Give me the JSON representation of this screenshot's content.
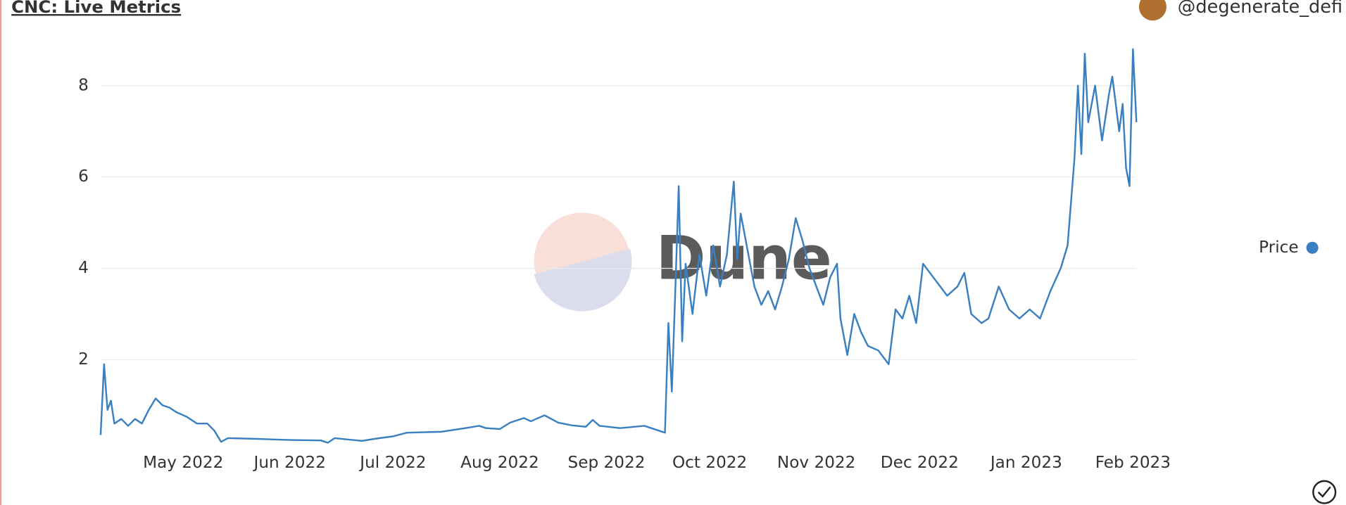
{
  "header": {
    "title": "CNC: Live Metrics",
    "user": "@degenerate_defi"
  },
  "chart_data": {
    "type": "line",
    "watermark": "Dune",
    "x": [
      "2022-04-07",
      "2022-04-08",
      "2022-04-09",
      "2022-04-10",
      "2022-04-11",
      "2022-04-13",
      "2022-04-15",
      "2022-04-17",
      "2022-04-19",
      "2022-04-21",
      "2022-04-23",
      "2022-04-25",
      "2022-04-27",
      "2022-04-29",
      "2022-05-02",
      "2022-05-05",
      "2022-05-08",
      "2022-05-10",
      "2022-05-12",
      "2022-05-14",
      "2022-05-20",
      "2022-06-01",
      "2022-06-10",
      "2022-06-12",
      "2022-06-14",
      "2022-06-18",
      "2022-06-22",
      "2022-06-26",
      "2022-07-01",
      "2022-07-05",
      "2022-07-15",
      "2022-07-22",
      "2022-07-26",
      "2022-07-28",
      "2022-08-01",
      "2022-08-04",
      "2022-08-08",
      "2022-08-10",
      "2022-08-14",
      "2022-08-18",
      "2022-08-22",
      "2022-08-26",
      "2022-08-28",
      "2022-08-30",
      "2022-09-05",
      "2022-09-12",
      "2022-09-18",
      "2022-09-19",
      "2022-09-20",
      "2022-09-21",
      "2022-09-22",
      "2022-09-23",
      "2022-09-24",
      "2022-09-26",
      "2022-09-28",
      "2022-09-30",
      "2022-10-02",
      "2022-10-04",
      "2022-10-06",
      "2022-10-08",
      "2022-10-09",
      "2022-10-10",
      "2022-10-12",
      "2022-10-14",
      "2022-10-16",
      "2022-10-18",
      "2022-10-20",
      "2022-10-22",
      "2022-10-24",
      "2022-10-26",
      "2022-10-28",
      "2022-10-30",
      "2022-11-01",
      "2022-11-03",
      "2022-11-05",
      "2022-11-07",
      "2022-11-08",
      "2022-11-10",
      "2022-11-12",
      "2022-11-14",
      "2022-11-16",
      "2022-11-19",
      "2022-11-22",
      "2022-11-24",
      "2022-11-26",
      "2022-11-28",
      "2022-11-30",
      "2022-12-02",
      "2022-12-04",
      "2022-12-06",
      "2022-12-09",
      "2022-12-12",
      "2022-12-14",
      "2022-12-16",
      "2022-12-19",
      "2022-12-21",
      "2022-12-24",
      "2022-12-27",
      "2022-12-30",
      "2023-01-02",
      "2023-01-05",
      "2023-01-08",
      "2023-01-11",
      "2023-01-13",
      "2023-01-15",
      "2023-01-16",
      "2023-01-17",
      "2023-01-18",
      "2023-01-19",
      "2023-01-21",
      "2023-01-23",
      "2023-01-25",
      "2023-01-26",
      "2023-01-28",
      "2023-01-29",
      "2023-01-30",
      "2023-01-31",
      "2023-02-01",
      "2023-02-02"
    ],
    "series": [
      {
        "name": "Price",
        "color": "#3a7fbf",
        "values": [
          0.35,
          1.9,
          0.9,
          1.1,
          0.6,
          0.7,
          0.55,
          0.7,
          0.6,
          0.9,
          1.15,
          1.0,
          0.95,
          0.85,
          0.75,
          0.6,
          0.6,
          0.45,
          0.2,
          0.28,
          0.27,
          0.24,
          0.23,
          0.18,
          0.28,
          0.25,
          0.22,
          0.27,
          0.32,
          0.4,
          0.42,
          0.5,
          0.55,
          0.5,
          0.48,
          0.62,
          0.72,
          0.65,
          0.78,
          0.62,
          0.56,
          0.53,
          0.68,
          0.55,
          0.5,
          0.55,
          0.4,
          2.8,
          1.3,
          3.5,
          5.8,
          2.4,
          4.1,
          3.0,
          4.3,
          3.4,
          4.5,
          3.6,
          4.3,
          5.9,
          4.2,
          5.2,
          4.4,
          3.6,
          3.2,
          3.5,
          3.1,
          3.6,
          4.2,
          5.1,
          4.6,
          4.0,
          3.6,
          3.2,
          3.8,
          4.1,
          2.9,
          2.1,
          3.0,
          2.6,
          2.3,
          2.2,
          1.9,
          3.1,
          2.9,
          3.4,
          2.8,
          4.1,
          3.9,
          3.7,
          3.4,
          3.6,
          3.9,
          3.0,
          2.8,
          2.9,
          3.6,
          3.1,
          2.9,
          3.1,
          2.9,
          3.5,
          4.0,
          4.5,
          6.4,
          8.0,
          6.5,
          8.7,
          7.2,
          8.0,
          6.8,
          7.8,
          8.2,
          7.0,
          7.6,
          6.2,
          5.8,
          8.8,
          7.2
        ]
      }
    ],
    "xlim": [
      "2022-04-07",
      "2023-02-02"
    ],
    "xticks": [
      {
        "value": "2022-05",
        "label": "May 2022"
      },
      {
        "value": "2022-06",
        "label": "Jun 2022"
      },
      {
        "value": "2022-07",
        "label": "Jul 2022"
      },
      {
        "value": "2022-08",
        "label": "Aug 2022"
      },
      {
        "value": "2022-09",
        "label": "Sep 2022"
      },
      {
        "value": "2022-10",
        "label": "Oct 2022"
      },
      {
        "value": "2022-11",
        "label": "Nov 2022"
      },
      {
        "value": "2022-12",
        "label": "Dec 2022"
      },
      {
        "value": "2023-01",
        "label": "Jan 2023"
      },
      {
        "value": "2023-02",
        "label": "Feb 2023"
      }
    ],
    "ylim": [
      0.2,
      8.8
    ],
    "yticks": [
      2,
      4,
      6,
      8
    ],
    "grid": true
  }
}
